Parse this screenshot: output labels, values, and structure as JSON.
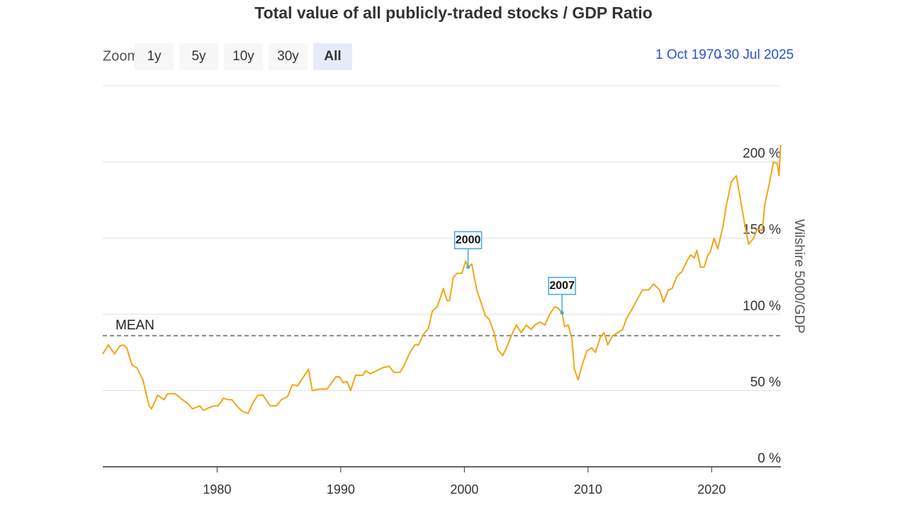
{
  "chart_data": {
    "type": "line",
    "title": "Total value of all publicly-traded stocks / GDP Ratio",
    "zoom_label": "Zoom",
    "zoom_buttons": [
      "1y",
      "5y",
      "10y",
      "30y",
      "All"
    ],
    "selected_zoom": "All",
    "range_start": "1 Oct 1970",
    "range_separator": "→",
    "range_end": "30 Jul 2025",
    "y_axis_title": "Wilshire 5000/GDP",
    "xlim": [
      1970.75,
      2025.6
    ],
    "xticks": [
      1980,
      1990,
      2000,
      2010,
      2020
    ],
    "ylim": [
      0,
      250
    ],
    "yticks": [
      {
        "value": 0,
        "label": "0 %"
      },
      {
        "value": 50,
        "label": "50 %"
      },
      {
        "value": 100,
        "label": "100 %"
      },
      {
        "value": 150,
        "label": "150 %"
      },
      {
        "value": 200,
        "label": "200 %"
      }
    ],
    "grid": true,
    "plot_lines": [
      {
        "label": "MEAN",
        "value": 86
      }
    ],
    "annotations": [
      {
        "text": "2000",
        "x": 2000.3,
        "y": 131
      },
      {
        "text": "2007",
        "x": 2007.9,
        "y": 101
      }
    ],
    "x": [
      1970.75,
      1971.2,
      1971.7,
      1972.1,
      1972.4,
      1972.7,
      1973.1,
      1973.5,
      1974.0,
      1974.5,
      1974.7,
      1975.2,
      1975.7,
      1976.0,
      1976.6,
      1977.2,
      1977.7,
      1978.0,
      1978.6,
      1978.9,
      1979.4,
      1979.8,
      1980.1,
      1980.5,
      1980.9,
      1981.2,
      1981.7,
      1982.1,
      1982.5,
      1982.9,
      1983.3,
      1983.7,
      1984.3,
      1984.8,
      1985.2,
      1985.7,
      1986.1,
      1986.5,
      1986.9,
      1987.4,
      1987.7,
      1988.3,
      1988.9,
      1989.6,
      1989.9,
      1990.2,
      1990.5,
      1990.8,
      1991.2,
      1991.8,
      1992.0,
      1992.4,
      1992.9,
      1993.4,
      1993.9,
      1994.3,
      1994.8,
      1995.1,
      1995.6,
      1996.0,
      1996.3,
      1996.7,
      1997.1,
      1997.4,
      1997.8,
      1998.1,
      1998.3,
      1998.6,
      1998.8,
      1999.1,
      1999.4,
      1999.8,
      2000.1,
      2000.3,
      2000.6,
      2001.0,
      2001.3,
      2001.7,
      2002.0,
      2002.4,
      2002.7,
      2003.1,
      2003.4,
      2003.8,
      2004.2,
      2004.6,
      2005.0,
      2005.4,
      2005.7,
      2006.1,
      2006.5,
      2006.9,
      2007.3,
      2007.6,
      2007.9,
      2008.1,
      2008.4,
      2008.7,
      2008.9,
      2009.2,
      2009.5,
      2009.9,
      2010.3,
      2010.6,
      2011.0,
      2011.3,
      2011.6,
      2012.0,
      2012.4,
      2012.8,
      2013.1,
      2013.6,
      2014.0,
      2014.4,
      2014.9,
      2015.3,
      2015.8,
      2016.1,
      2016.5,
      2016.8,
      2017.2,
      2017.6,
      2018.0,
      2018.3,
      2018.6,
      2018.8,
      2019.1,
      2019.4,
      2019.7,
      2019.9,
      2020.2,
      2020.5,
      2020.9,
      2021.2,
      2021.6,
      2022.0,
      2022.4,
      2022.7,
      2023.0,
      2023.4,
      2023.7,
      2024.1,
      2024.3,
      2024.7,
      2025.0,
      2025.3,
      2025.45,
      2025.58
    ],
    "series": [
      {
        "name": "Wilshire 5000/GDP",
        "color": "#f2a516",
        "values": [
          74,
          80,
          74,
          79,
          80,
          78,
          67,
          65,
          57,
          40,
          38,
          47,
          44,
          48,
          48,
          44,
          41,
          38,
          40,
          37,
          39,
          40,
          40,
          45,
          44,
          44,
          39,
          36,
          35,
          42,
          47,
          47,
          40,
          40,
          44,
          46,
          54,
          53,
          58,
          64,
          50,
          51,
          51,
          59,
          59,
          55,
          56,
          50,
          60,
          60,
          63,
          61,
          63,
          65,
          66,
          62,
          62,
          66,
          75,
          80,
          80,
          87,
          91,
          102,
          105,
          112,
          117,
          109,
          109,
          124,
          127,
          127,
          135,
          131,
          133,
          116,
          109,
          99,
          97,
          88,
          77,
          73,
          78,
          86,
          93,
          88,
          93,
          90,
          93,
          95,
          93,
          100,
          105,
          104,
          101,
          92,
          93,
          84,
          64,
          57,
          66,
          76,
          78,
          75,
          85,
          88,
          80,
          86,
          88,
          90,
          97,
          104,
          110,
          116,
          116,
          120,
          116,
          108,
          116,
          117,
          125,
          128,
          135,
          139,
          137,
          142,
          131,
          131,
          139,
          141,
          150,
          143,
          157,
          172,
          187,
          191,
          172,
          158,
          146,
          150,
          156,
          155,
          172,
          187,
          200,
          199,
          191,
          211
        ]
      }
    ]
  }
}
